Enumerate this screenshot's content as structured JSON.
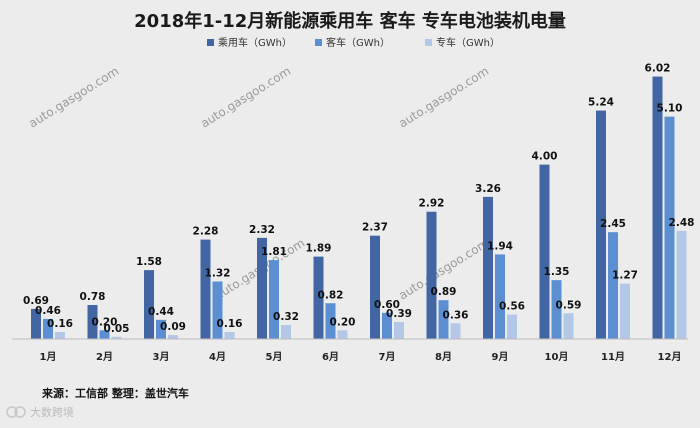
{
  "chart_data": {
    "type": "bar",
    "title": "2018年1-12月新能源乘用车 客车 专车电池装机电量",
    "categories": [
      "1月",
      "2月",
      "3月",
      "4月",
      "5月",
      "6月",
      "7月",
      "8月",
      "9月",
      "10月",
      "11月",
      "12月"
    ],
    "series": [
      {
        "name": "乘用车（GWh）",
        "color": "#4266a3",
        "values": [
          0.69,
          0.78,
          1.58,
          2.28,
          2.32,
          1.89,
          2.37,
          2.92,
          3.26,
          4.0,
          5.24,
          6.02
        ]
      },
      {
        "name": "客车（GWh）",
        "color": "#5b8fd1",
        "values": [
          0.46,
          0.2,
          0.44,
          1.32,
          1.81,
          0.82,
          0.6,
          0.89,
          1.94,
          1.35,
          2.45,
          5.1
        ]
      },
      {
        "name": "专车（GWh）",
        "color": "#b3c7e6",
        "values": [
          0.16,
          0.05,
          0.09,
          0.16,
          0.32,
          0.2,
          0.39,
          0.36,
          0.56,
          0.59,
          1.27,
          2.48
        ]
      }
    ],
    "value_labels": [
      [
        "0.69",
        "0.78",
        "1.58",
        "2.28",
        "2.32",
        "1.89",
        "2.37",
        "2.92",
        "3.26",
        "4.00",
        "5.24",
        "6.02"
      ],
      [
        "0.46",
        "0.20",
        "0.44",
        "1.32",
        "1.81",
        "0.82",
        "0.60",
        "0.89",
        "1.94",
        "1.35",
        "2.45",
        "5.10"
      ],
      [
        "0.16",
        "0.05",
        "0.09",
        "0.16",
        "0.32",
        "0.20",
        "0.39",
        "0.36",
        "0.56",
        "0.59",
        "1.27",
        "2.48"
      ]
    ],
    "ylim": [
      0,
      6.4
    ],
    "grid": false,
    "legend": "top-center"
  },
  "source_note": "来源：工信部  整理：盖世汽车",
  "watermark_site": "auto.gasgoo.com",
  "corner_brand": "大数跨境"
}
